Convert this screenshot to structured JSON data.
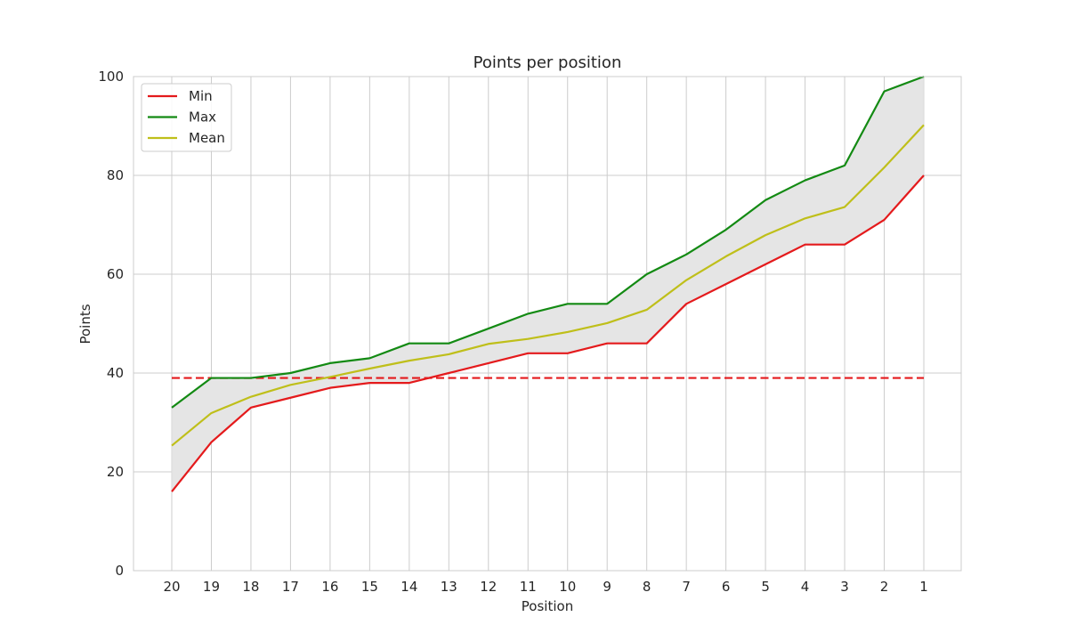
{
  "chart_data": {
    "type": "line",
    "title": "Points per position",
    "xlabel": "Position",
    "ylabel": "Points",
    "categories": [
      "20",
      "19",
      "18",
      "17",
      "16",
      "15",
      "14",
      "13",
      "12",
      "11",
      "10",
      "9",
      "8",
      "7",
      "6",
      "5",
      "4",
      "3",
      "2",
      "1"
    ],
    "ylim": [
      0,
      100
    ],
    "yticks": [
      0,
      20,
      40,
      60,
      80,
      100
    ],
    "grid": true,
    "legend": "top-left",
    "series": [
      {
        "name": "Min",
        "color": "#e41a1c",
        "values": [
          16,
          26,
          33,
          35,
          37,
          38,
          38,
          40,
          42,
          44,
          44,
          46,
          46,
          54,
          58,
          62,
          66,
          66,
          71,
          80
        ]
      },
      {
        "name": "Max",
        "color": "#138a13",
        "values": [
          33,
          39,
          39,
          40,
          42,
          43,
          46,
          46,
          49,
          52,
          54,
          54,
          60,
          64,
          69,
          75,
          79,
          82,
          97,
          100
        ]
      },
      {
        "name": "Mean",
        "color": "#bfbf1a",
        "values": [
          25.3,
          31.9,
          35.2,
          37.6,
          39.2,
          40.9,
          42.5,
          43.8,
          45.9,
          46.9,
          48.3,
          50.1,
          52.8,
          58.8,
          63.6,
          67.9,
          71.3,
          73.6,
          81.6,
          90.2
        ]
      }
    ],
    "fill_between": {
      "lower": "Min",
      "upper": "Max",
      "color": "#e5e5e5"
    },
    "reference_line": {
      "y": 39,
      "color": "#e41a1c",
      "style": "dashed"
    }
  }
}
